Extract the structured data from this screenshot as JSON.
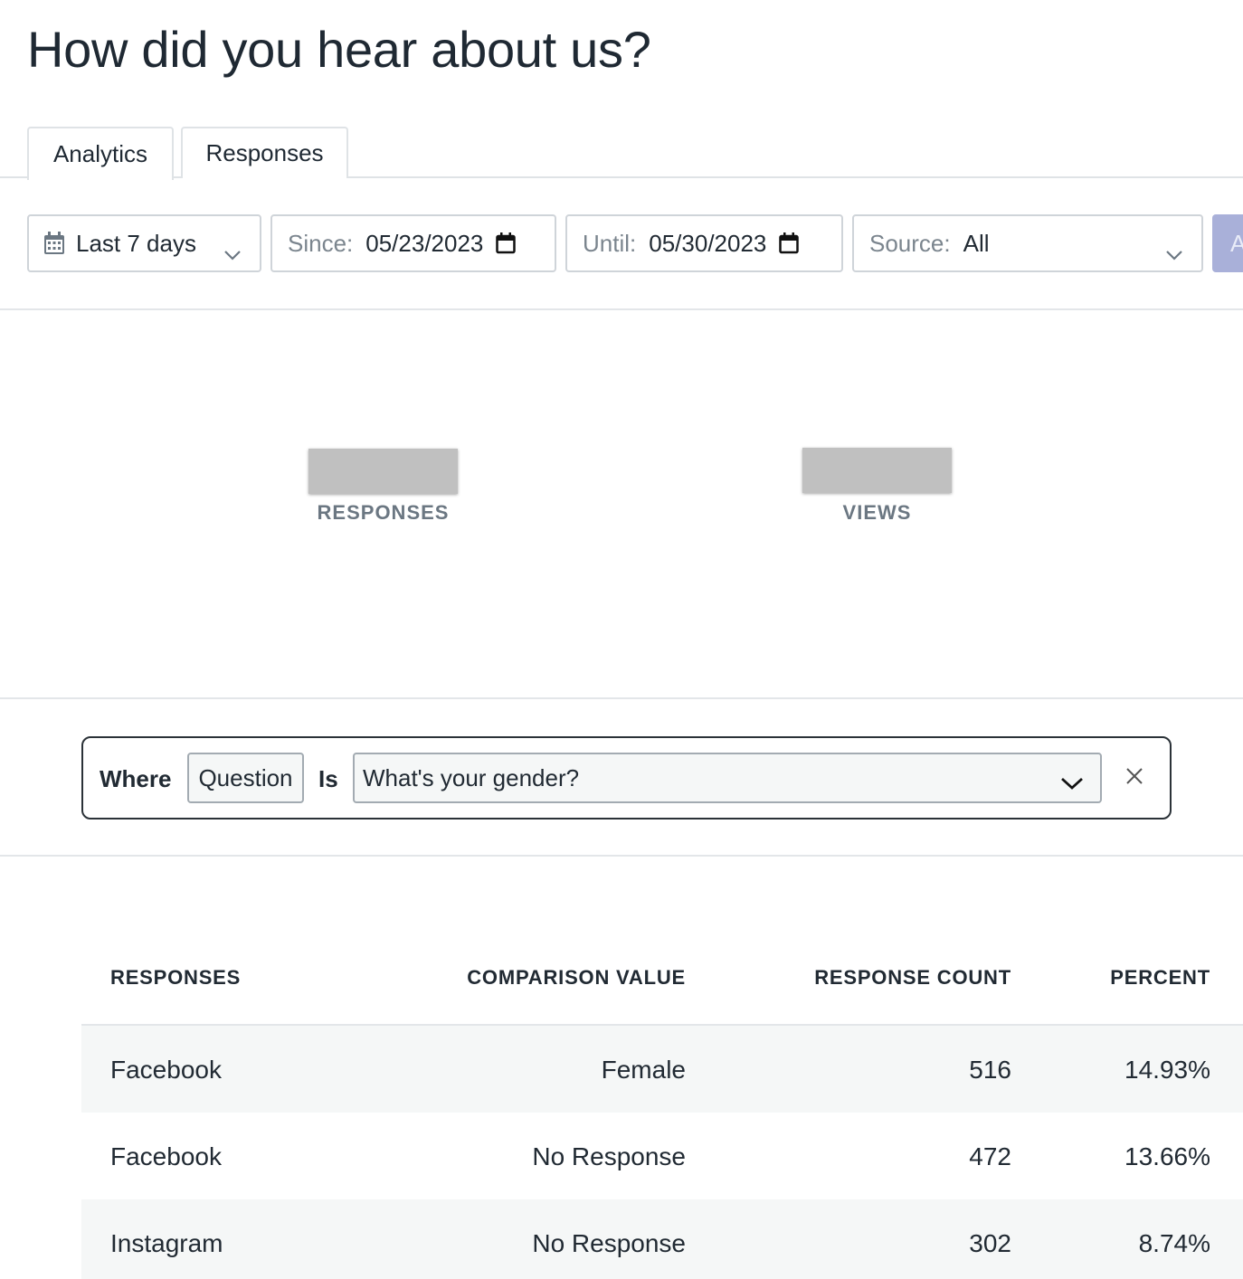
{
  "page": {
    "title": "How did you hear about us?"
  },
  "tabs": [
    {
      "label": "Analytics",
      "active": true
    },
    {
      "label": "Responses",
      "active": false
    }
  ],
  "filters": {
    "range": {
      "value": "Last 7 days",
      "icon": "calendar-icon"
    },
    "since": {
      "label": "Since:",
      "value": "05/23/2023"
    },
    "until": {
      "label": "Until:",
      "value": "05/30/2023"
    },
    "source": {
      "label": "Source:",
      "value": "All"
    },
    "apply_label": "A"
  },
  "stats": {
    "responses_label": "RESPONSES",
    "views_label": "VIEWS"
  },
  "where_filter": {
    "where_label": "Where",
    "field": "Question",
    "operator": "Is",
    "value": "What's your gender?"
  },
  "table": {
    "headers": [
      "RESPONSES",
      "COMPARISON VALUE",
      "RESPONSE COUNT",
      "PERCENT"
    ],
    "rows": [
      {
        "response": "Facebook",
        "comparison": "Female",
        "count": "516",
        "percent": "14.93%"
      },
      {
        "response": "Facebook",
        "comparison": "No Response",
        "count": "472",
        "percent": "13.66%"
      },
      {
        "response": "Instagram",
        "comparison": "No Response",
        "count": "302",
        "percent": "8.74%"
      }
    ]
  },
  "colors": {
    "apply_button": "#a9b0d9",
    "row_shade": "#f5f7f7",
    "stat_placeholder": "#c0c0c0"
  }
}
